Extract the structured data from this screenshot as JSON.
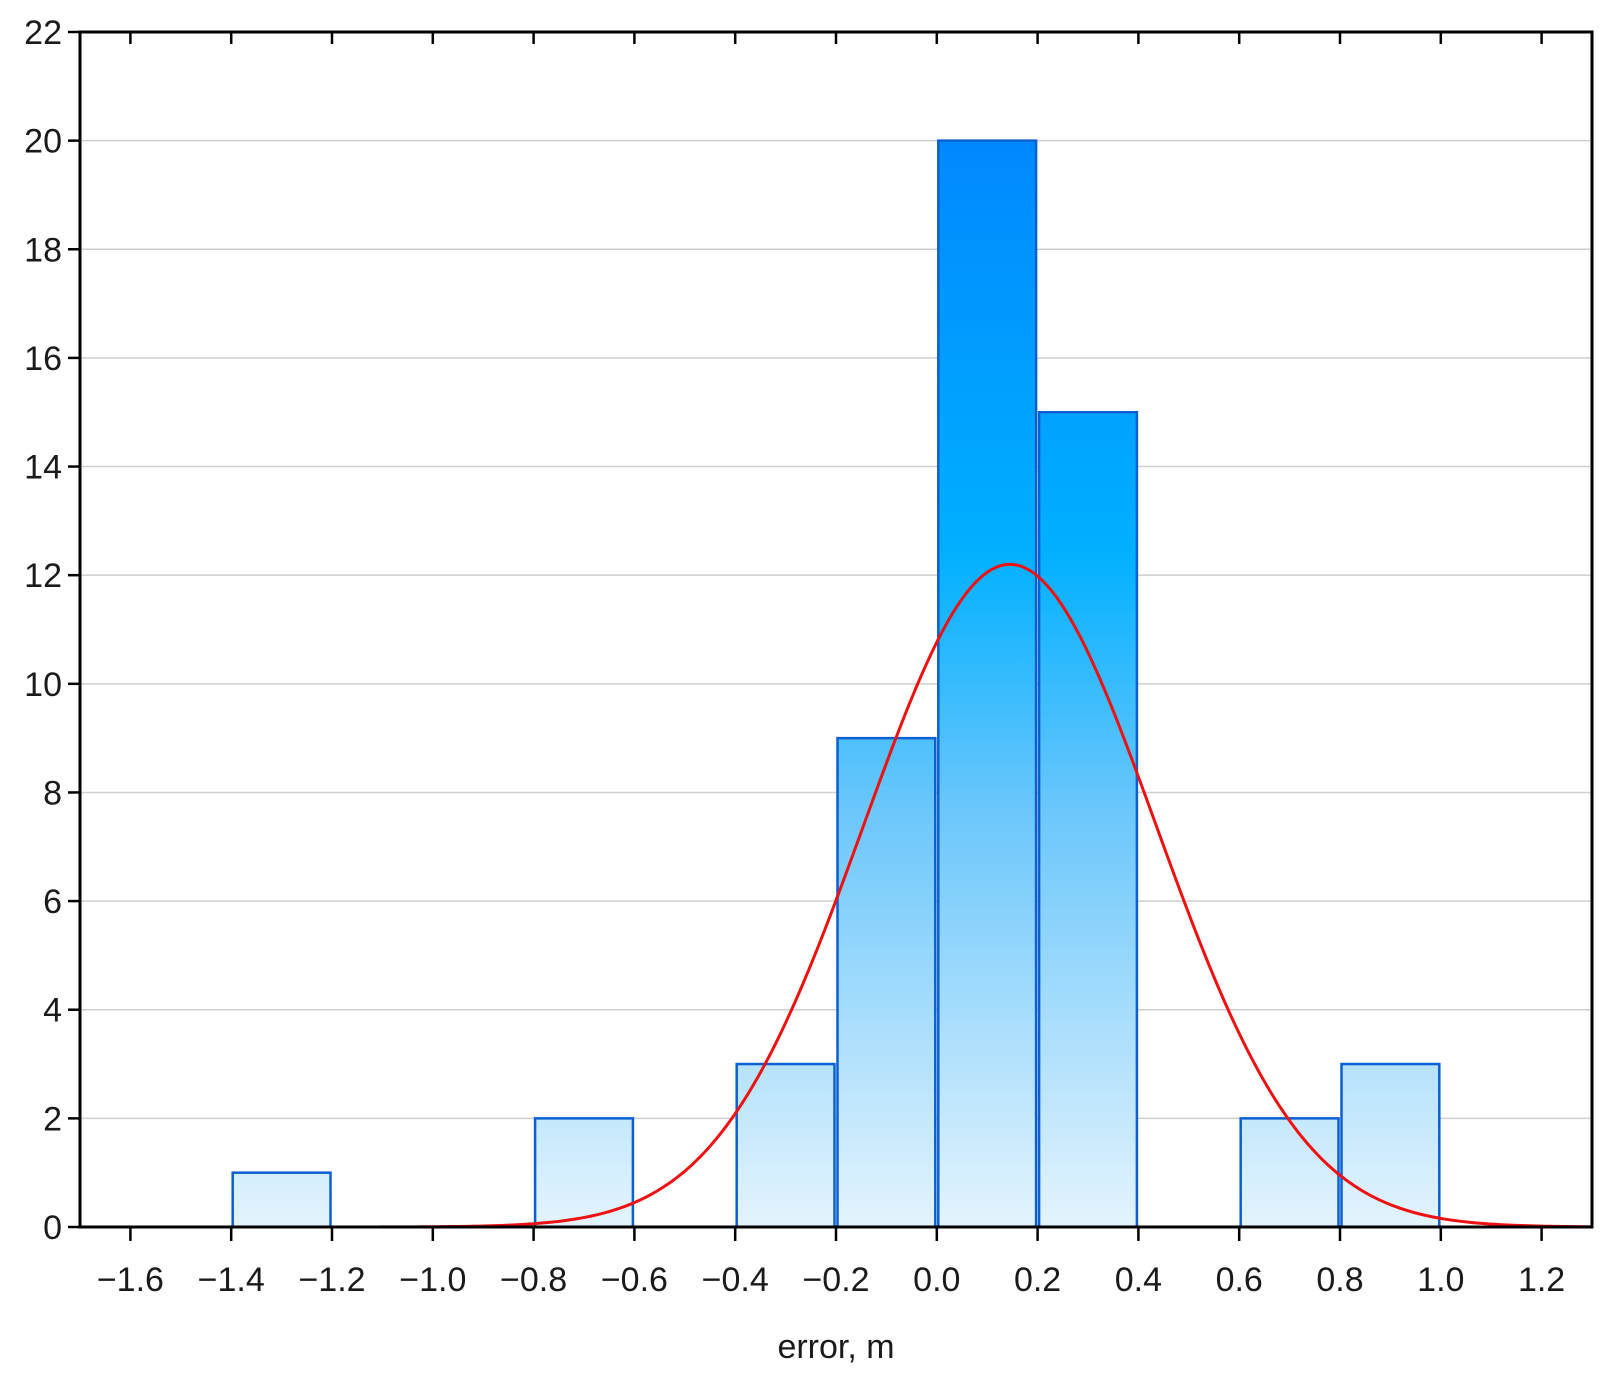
{
  "chart_data": {
    "type": "bar",
    "subtype": "histogram with fitted normal curve",
    "title": "",
    "xlabel": "error, m",
    "ylabel": "",
    "xlim": [
      -1.7,
      1.3
    ],
    "ylim": [
      0,
      22
    ],
    "x_ticks": [
      "-1.6",
      "-1.4",
      "-1.2",
      "-1.0",
      "-0.8",
      "-0.6",
      "-0.4",
      "-0.2",
      "0.0",
      "0.2",
      "0.4",
      "0.6",
      "0.8",
      "1.0",
      "1.2"
    ],
    "y_ticks": [
      "0",
      "2",
      "4",
      "6",
      "8",
      "10",
      "12",
      "14",
      "16",
      "18",
      "20",
      "22"
    ],
    "grid": "horizontal",
    "bins": [
      {
        "x0": -1.4,
        "x1": -1.2,
        "count": 1
      },
      {
        "x0": -0.8,
        "x1": -0.6,
        "count": 2
      },
      {
        "x0": -0.4,
        "x1": -0.2,
        "count": 3
      },
      {
        "x0": -0.2,
        "x1": 0.0,
        "count": 9
      },
      {
        "x0": 0.0,
        "x1": 0.2,
        "count": 20
      },
      {
        "x0": 0.2,
        "x1": 0.4,
        "count": 15
      },
      {
        "x0": 0.6,
        "x1": 0.8,
        "count": 2
      },
      {
        "x0": 0.8,
        "x1": 1.0,
        "count": 3
      }
    ],
    "fitted_curve": {
      "distribution": "normal",
      "mean": 0.145,
      "sd": 0.29,
      "peak": 12.2,
      "x_start": -1.18,
      "x_end": 1.3
    },
    "colors": {
      "bar_top": "#0088ff",
      "bar_bottom": "#e4f4fd",
      "bar_border": "#0a5fd1",
      "curve": "#ee1111",
      "grid": "#cfcfcf",
      "axis": "#000000"
    }
  }
}
